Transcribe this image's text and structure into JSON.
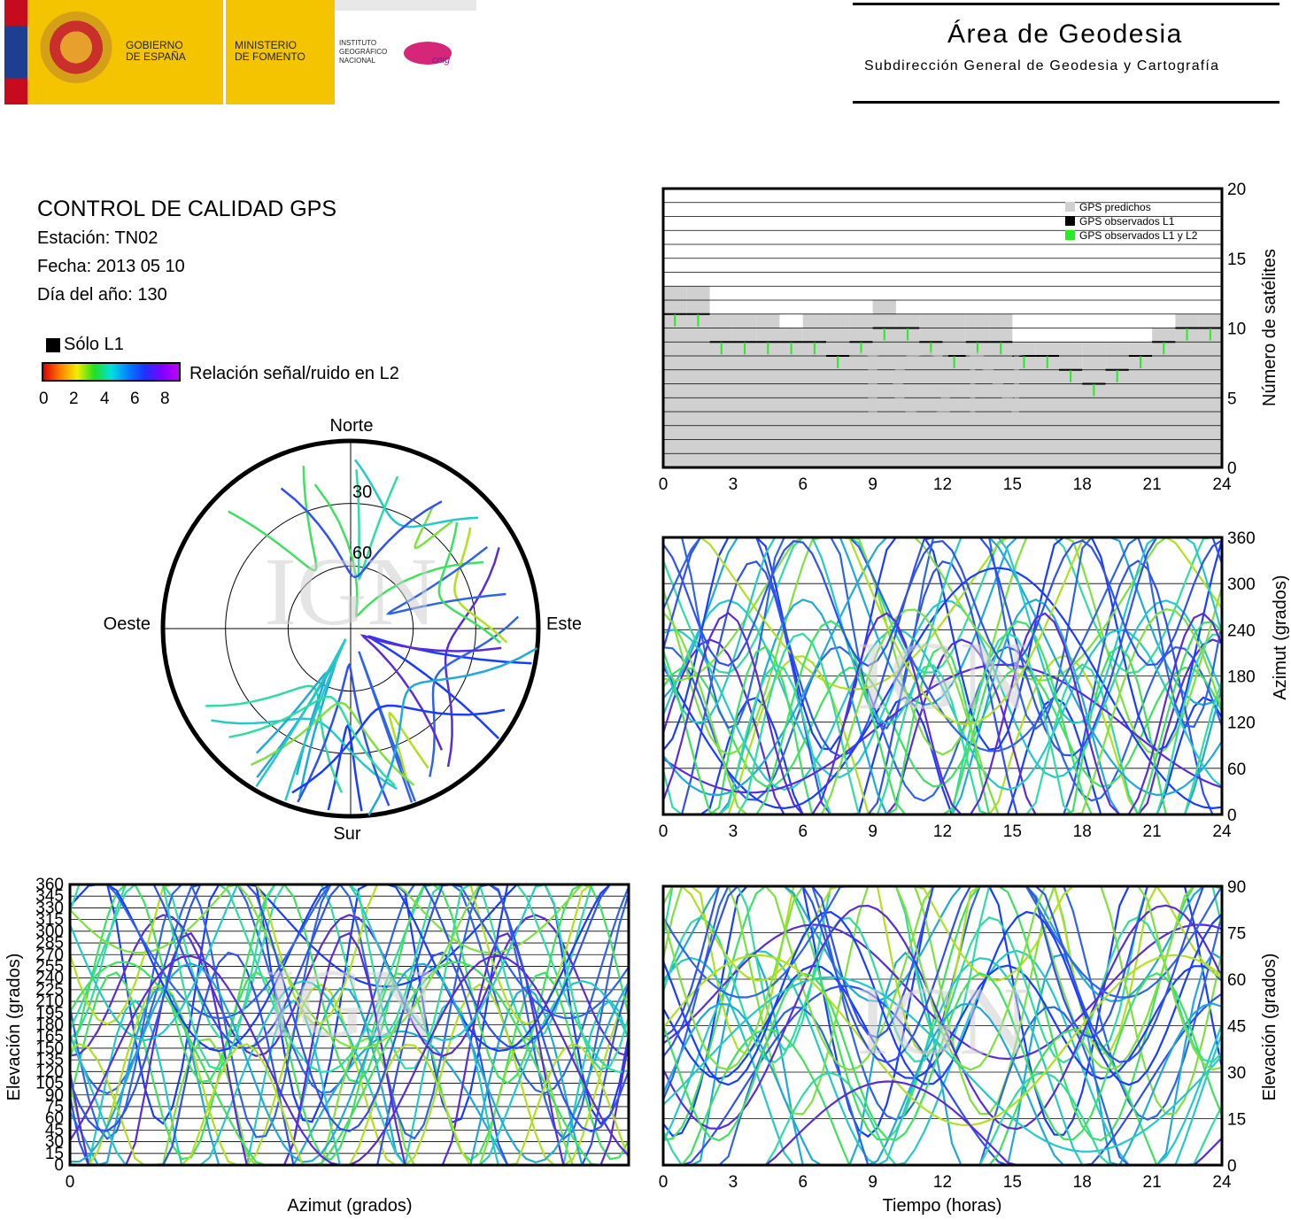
{
  "header": {
    "gov_line1": "GOBIERNO",
    "gov_line2": "DE ESPAÑA",
    "min_line1": "MINISTERIO",
    "min_line2": "DE FOMENTO",
    "inst_line1": "INSTITUTO",
    "inst_line2": "GEOGRÁFICO",
    "inst_line3": "NACIONAL",
    "cnig": "cnig",
    "title": "Área de Geodesia",
    "subtitle": "Subdirección General de Geodesia y Cartografía"
  },
  "info": {
    "heading": "CONTROL DE CALIDAD GPS",
    "station": "Estación: TN02",
    "date": "Fecha: 2013 05 10",
    "doy": "Día del año: 130",
    "l1_label": "Sólo L1",
    "snr_label": "Relación señal/ruido en L2",
    "snr_ticks": [
      "0",
      "2",
      "4",
      "6",
      "8"
    ]
  },
  "watermark": "IGN",
  "chart_data": [
    {
      "type": "bar",
      "id": "satellites",
      "ylabel": "Número de satélites",
      "xlim": [
        0,
        24
      ],
      "ylim": [
        0,
        20
      ],
      "xticks": [
        "0",
        "3",
        "6",
        "9",
        "12",
        "15",
        "18",
        "21",
        "24"
      ],
      "yticks": [
        "0",
        "5",
        "10",
        "15",
        "20"
      ],
      "legend": [
        "GPS predichos",
        "GPS observados L1",
        "GPS observados L1 y L2"
      ],
      "legend_placement": "top-right",
      "colors": {
        "predicted": "#d0d0d0",
        "l1": "#000000",
        "l1l2": "#22ee22"
      },
      "x": [
        0,
        1,
        2,
        3,
        4,
        5,
        6,
        7,
        8,
        9,
        10,
        11,
        12,
        13,
        14,
        15,
        16,
        17,
        18,
        19,
        20,
        21,
        22,
        23
      ],
      "predicted": [
        13,
        13,
        11,
        11,
        11,
        10,
        11,
        11,
        11,
        12,
        11,
        11,
        11,
        11,
        11,
        9,
        9,
        9,
        9,
        9,
        9,
        10,
        11,
        11
      ],
      "observed": [
        11,
        11,
        9,
        9,
        9,
        9,
        9,
        8,
        9,
        10,
        10,
        9,
        8,
        9,
        9,
        8,
        8,
        7,
        6,
        7,
        8,
        9,
        10,
        10
      ]
    },
    {
      "type": "polar-skyplot",
      "id": "skyplot",
      "labels": {
        "north": "Norte",
        "south": "Sur",
        "east": "Este",
        "west": "Oeste"
      },
      "rings": [
        "30",
        "60"
      ]
    },
    {
      "type": "scatter",
      "id": "azimuth-time",
      "ylabel": "Azimut (grados)",
      "xlim": [
        0,
        24
      ],
      "ylim": [
        0,
        360
      ],
      "xticks": [
        "0",
        "3",
        "6",
        "9",
        "12",
        "15",
        "18",
        "21",
        "24"
      ],
      "yticks": [
        "0",
        "60",
        "120",
        "180",
        "240",
        "300",
        "360"
      ]
    },
    {
      "type": "scatter",
      "id": "elevation-azimuth",
      "xlabel": "Azimut (grados)",
      "ylabel": "Elevación (grados)",
      "xticks": [
        "0"
      ],
      "yticks": [
        "0",
        "15",
        "30",
        "45",
        "60",
        "75",
        "90",
        "105",
        "120",
        "135",
        "150",
        "165",
        "180",
        "195",
        "210",
        "225",
        "240",
        "255",
        "270",
        "285",
        "300",
        "315",
        "330",
        "345",
        "360"
      ]
    },
    {
      "type": "scatter",
      "id": "elevation-time",
      "xlabel": "Tiempo (horas)",
      "ylabel": "Elevación (grados)",
      "xlim": [
        0,
        24
      ],
      "ylim": [
        0,
        90
      ],
      "xticks": [
        "0",
        "3",
        "6",
        "9",
        "12",
        "15",
        "18",
        "21",
        "24"
      ],
      "yticks": [
        "0",
        "15",
        "30",
        "45",
        "60",
        "75",
        "90"
      ]
    }
  ]
}
